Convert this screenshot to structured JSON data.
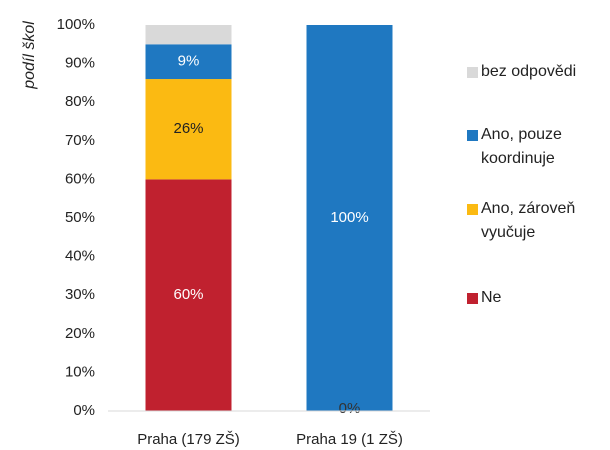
{
  "chart_data": {
    "type": "stacked_bar",
    "y_label": "podíl škol",
    "categories": [
      "Praha (179 ZŠ)",
      "Praha 19 (1 ZŠ)"
    ],
    "series": [
      {
        "name": "Ne",
        "color": "#c0212f",
        "label_color": "#ffffff",
        "values": [
          60,
          0
        ],
        "value_labels": [
          "60%",
          "0%"
        ]
      },
      {
        "name": "Ano, zároveň vyučuje",
        "color": "#fbba12",
        "label_color": "#222222",
        "values": [
          26,
          0
        ],
        "value_labels": [
          "26%",
          null
        ]
      },
      {
        "name": "Ano, pouze koordinuje",
        "color": "#1f78c1",
        "label_color": "#ffffff",
        "values": [
          9,
          100
        ],
        "value_labels": [
          "9%",
          "100%"
        ]
      },
      {
        "name": "bez odpovědi",
        "color": "#d9d9d9",
        "label_color": "#222222",
        "values": [
          5,
          0
        ],
        "value_labels": [
          null,
          null
        ]
      }
    ],
    "ylim": [
      0,
      100
    ],
    "yticks": [
      {
        "value": 0,
        "label": "0%"
      },
      {
        "value": 10,
        "label": "10%"
      },
      {
        "value": 20,
        "label": "20%"
      },
      {
        "value": 30,
        "label": "30%"
      },
      {
        "value": 40,
        "label": "40%"
      },
      {
        "value": 50,
        "label": "50%"
      },
      {
        "value": 60,
        "label": "60%"
      },
      {
        "value": 70,
        "label": "70%"
      },
      {
        "value": 80,
        "label": "80%"
      },
      {
        "value": 90,
        "label": "90%"
      },
      {
        "value": 100,
        "label": "100%"
      }
    ],
    "grid": false,
    "legend": "right"
  }
}
